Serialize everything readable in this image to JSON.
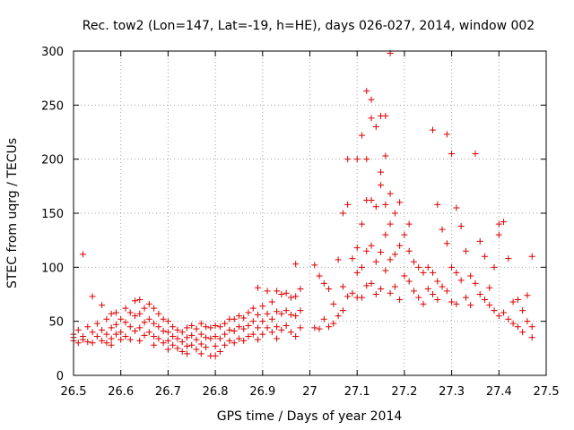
{
  "chart_data": {
    "type": "scatter",
    "title": "Rec. tow2 (Lon=147, Lat=-19, h=HE), days 026-027, 2014, window 002",
    "xlabel": "GPS time / Days of year 2014",
    "ylabel": "STEC from uqrg / TECUs",
    "xlim": [
      26.5,
      27.5
    ],
    "ylim": [
      0,
      300
    ],
    "x_ticks": [
      26.5,
      26.6,
      26.7,
      26.8,
      26.9,
      27,
      27.1,
      27.2,
      27.3,
      27.4,
      27.5
    ],
    "x_tick_labels": [
      "26.5",
      "26.6",
      "26.7",
      "26.8",
      "26.9",
      "27",
      "27.1",
      "27.2",
      "27.3",
      "27.4",
      "27.5"
    ],
    "y_ticks": [
      0,
      50,
      100,
      150,
      200,
      250,
      300
    ],
    "y_tick_labels": [
      "0",
      "50",
      "100",
      "150",
      "200",
      "250",
      "300"
    ],
    "grid": true,
    "marker": "+",
    "color": "#dd0000",
    "series": [
      {
        "name": "STEC",
        "points": [
          [
            26.5,
            38
          ],
          [
            26.5,
            35
          ],
          [
            26.5,
            32
          ],
          [
            26.51,
            42
          ],
          [
            26.51,
            30
          ],
          [
            26.52,
            112
          ],
          [
            26.52,
            36
          ],
          [
            26.52,
            33
          ],
          [
            26.53,
            45
          ],
          [
            26.53,
            31
          ],
          [
            26.54,
            73
          ],
          [
            26.54,
            40
          ],
          [
            26.54,
            30
          ],
          [
            26.55,
            48
          ],
          [
            26.55,
            36
          ],
          [
            26.56,
            65
          ],
          [
            26.56,
            42
          ],
          [
            26.56,
            32
          ],
          [
            26.57,
            52
          ],
          [
            26.57,
            38
          ],
          [
            26.57,
            30
          ],
          [
            26.58,
            57
          ],
          [
            26.58,
            44
          ],
          [
            26.58,
            34
          ],
          [
            26.58,
            28
          ],
          [
            26.59,
            58
          ],
          [
            26.59,
            47
          ],
          [
            26.59,
            38
          ],
          [
            26.6,
            52
          ],
          [
            26.6,
            40
          ],
          [
            26.6,
            33
          ],
          [
            26.61,
            62
          ],
          [
            26.61,
            49
          ],
          [
            26.61,
            36
          ],
          [
            26.62,
            58
          ],
          [
            26.62,
            45
          ],
          [
            26.62,
            33
          ],
          [
            26.63,
            69
          ],
          [
            26.63,
            55
          ],
          [
            26.63,
            41
          ],
          [
            26.64,
            70
          ],
          [
            26.64,
            57
          ],
          [
            26.64,
            44
          ],
          [
            26.64,
            32
          ],
          [
            26.65,
            62
          ],
          [
            26.65,
            49
          ],
          [
            26.65,
            37
          ],
          [
            26.66,
            66
          ],
          [
            26.66,
            52
          ],
          [
            26.66,
            40
          ],
          [
            26.67,
            62
          ],
          [
            26.67,
            48
          ],
          [
            26.67,
            36
          ],
          [
            26.67,
            28
          ],
          [
            26.68,
            57
          ],
          [
            26.68,
            45
          ],
          [
            26.68,
            34
          ],
          [
            26.69,
            52
          ],
          [
            26.69,
            41
          ],
          [
            26.69,
            30
          ],
          [
            26.7,
            50
          ],
          [
            26.7,
            40
          ],
          [
            26.7,
            32
          ],
          [
            26.7,
            24
          ],
          [
            26.71,
            45
          ],
          [
            26.71,
            36
          ],
          [
            26.71,
            28
          ],
          [
            26.72,
            42
          ],
          [
            26.72,
            34
          ],
          [
            26.72,
            25
          ],
          [
            26.73,
            40
          ],
          [
            26.73,
            31
          ],
          [
            26.73,
            22
          ],
          [
            26.74,
            44
          ],
          [
            26.74,
            35
          ],
          [
            26.74,
            27
          ],
          [
            26.74,
            20
          ],
          [
            26.75,
            46
          ],
          [
            26.75,
            37
          ],
          [
            26.75,
            28
          ],
          [
            26.76,
            43
          ],
          [
            26.76,
            33
          ],
          [
            26.76,
            24
          ],
          [
            26.77,
            48
          ],
          [
            26.77,
            38
          ],
          [
            26.77,
            29
          ],
          [
            26.77,
            20
          ],
          [
            26.78,
            45
          ],
          [
            26.78,
            35
          ],
          [
            26.78,
            26
          ],
          [
            26.79,
            44
          ],
          [
            26.79,
            34
          ],
          [
            26.79,
            18
          ],
          [
            26.8,
            46
          ],
          [
            26.8,
            36
          ],
          [
            26.8,
            27
          ],
          [
            26.8,
            18
          ],
          [
            26.81,
            45
          ],
          [
            26.81,
            34
          ],
          [
            26.81,
            22
          ],
          [
            26.82,
            48
          ],
          [
            26.82,
            38
          ],
          [
            26.82,
            28
          ],
          [
            26.83,
            52
          ],
          [
            26.83,
            42
          ],
          [
            26.83,
            32
          ],
          [
            26.84,
            52
          ],
          [
            26.84,
            41
          ],
          [
            26.84,
            30
          ],
          [
            26.85,
            55
          ],
          [
            26.85,
            45
          ],
          [
            26.85,
            34
          ],
          [
            26.86,
            53
          ],
          [
            26.86,
            43
          ],
          [
            26.86,
            32
          ],
          [
            26.87,
            58
          ],
          [
            26.87,
            46
          ],
          [
            26.87,
            36
          ],
          [
            26.88,
            62
          ],
          [
            26.88,
            50
          ],
          [
            26.88,
            38
          ],
          [
            26.89,
            81
          ],
          [
            26.89,
            56
          ],
          [
            26.89,
            44
          ],
          [
            26.89,
            33
          ],
          [
            26.9,
            64
          ],
          [
            26.9,
            50
          ],
          [
            26.9,
            38
          ],
          [
            26.91,
            78
          ],
          [
            26.91,
            57
          ],
          [
            26.91,
            44
          ],
          [
            26.92,
            68
          ],
          [
            26.92,
            52
          ],
          [
            26.92,
            40
          ],
          [
            26.93,
            78
          ],
          [
            26.93,
            59
          ],
          [
            26.93,
            45
          ],
          [
            26.93,
            34
          ],
          [
            26.94,
            75
          ],
          [
            26.94,
            57
          ],
          [
            26.94,
            42
          ],
          [
            26.95,
            76
          ],
          [
            26.95,
            60
          ],
          [
            26.95,
            46
          ],
          [
            26.96,
            72
          ],
          [
            26.96,
            56
          ],
          [
            26.96,
            40
          ],
          [
            26.97,
            103
          ],
          [
            26.97,
            73
          ],
          [
            26.97,
            55
          ],
          [
            26.97,
            36
          ],
          [
            26.98,
            80
          ],
          [
            26.98,
            60
          ],
          [
            26.98,
            44
          ],
          [
            27.01,
            102
          ],
          [
            27.01,
            44
          ],
          [
            27.02,
            92
          ],
          [
            27.02,
            43
          ],
          [
            27.03,
            85
          ],
          [
            27.03,
            52
          ],
          [
            27.04,
            80
          ],
          [
            27.04,
            45
          ],
          [
            27.05,
            66
          ],
          [
            27.05,
            48
          ],
          [
            27.06,
            107
          ],
          [
            27.06,
            55
          ],
          [
            27.07,
            150
          ],
          [
            27.07,
            82
          ],
          [
            27.07,
            60
          ],
          [
            27.08,
            158
          ],
          [
            27.08,
            200
          ],
          [
            27.08,
            73
          ],
          [
            27.09,
            108
          ],
          [
            27.09,
            76
          ],
          [
            27.1,
            200
          ],
          [
            27.1,
            118
          ],
          [
            27.1,
            95
          ],
          [
            27.1,
            72
          ],
          [
            27.11,
            222
          ],
          [
            27.11,
            140
          ],
          [
            27.11,
            100
          ],
          [
            27.11,
            72
          ],
          [
            27.12,
            263
          ],
          [
            27.12,
            200
          ],
          [
            27.12,
            162
          ],
          [
            27.12,
            115
          ],
          [
            27.12,
            83
          ],
          [
            27.13,
            255
          ],
          [
            27.13,
            238
          ],
          [
            27.13,
            162
          ],
          [
            27.13,
            120
          ],
          [
            27.13,
            85
          ],
          [
            27.14,
            230
          ],
          [
            27.14,
            156
          ],
          [
            27.14,
            105
          ],
          [
            27.14,
            75
          ],
          [
            27.15,
            240
          ],
          [
            27.15,
            188
          ],
          [
            27.15,
            176
          ],
          [
            27.15,
            114
          ],
          [
            27.15,
            80
          ],
          [
            27.16,
            240
          ],
          [
            27.16,
            203
          ],
          [
            27.16,
            158
          ],
          [
            27.16,
            130
          ],
          [
            27.16,
            97
          ],
          [
            27.17,
            298
          ],
          [
            27.17,
            168
          ],
          [
            27.17,
            140
          ],
          [
            27.17,
            107
          ],
          [
            27.17,
            76
          ],
          [
            27.18,
            150
          ],
          [
            27.18,
            112
          ],
          [
            27.18,
            82
          ],
          [
            27.19,
            160
          ],
          [
            27.19,
            120
          ],
          [
            27.19,
            70
          ],
          [
            27.2,
            130
          ],
          [
            27.2,
            92
          ],
          [
            27.21,
            140
          ],
          [
            27.21,
            115
          ],
          [
            27.21,
            87
          ],
          [
            27.22,
            105
          ],
          [
            27.22,
            78
          ],
          [
            27.23,
            100
          ],
          [
            27.23,
            72
          ],
          [
            27.24,
            95
          ],
          [
            27.24,
            66
          ],
          [
            27.25,
            100
          ],
          [
            27.25,
            80
          ],
          [
            27.26,
            227
          ],
          [
            27.26,
            95
          ],
          [
            27.26,
            75
          ],
          [
            27.27,
            158
          ],
          [
            27.27,
            87
          ],
          [
            27.27,
            70
          ],
          [
            27.28,
            135
          ],
          [
            27.28,
            82
          ],
          [
            27.29,
            223
          ],
          [
            27.29,
            122
          ],
          [
            27.29,
            78
          ],
          [
            27.3,
            205
          ],
          [
            27.3,
            100
          ],
          [
            27.3,
            68
          ],
          [
            27.31,
            155
          ],
          [
            27.31,
            95
          ],
          [
            27.31,
            66
          ],
          [
            27.32,
            138
          ],
          [
            27.32,
            88
          ],
          [
            27.33,
            115
          ],
          [
            27.33,
            72
          ],
          [
            27.34,
            92
          ],
          [
            27.34,
            65
          ],
          [
            27.35,
            205
          ],
          [
            27.35,
            85
          ],
          [
            27.36,
            124
          ],
          [
            27.36,
            75
          ],
          [
            27.37,
            110
          ],
          [
            27.37,
            70
          ],
          [
            27.38,
            81
          ],
          [
            27.38,
            65
          ],
          [
            27.39,
            100
          ],
          [
            27.39,
            60
          ],
          [
            27.4,
            140
          ],
          [
            27.4,
            130
          ],
          [
            27.4,
            55
          ],
          [
            27.41,
            142
          ],
          [
            27.41,
            58
          ],
          [
            27.42,
            108
          ],
          [
            27.42,
            52
          ],
          [
            27.43,
            68
          ],
          [
            27.43,
            48
          ],
          [
            27.44,
            70
          ],
          [
            27.44,
            45
          ],
          [
            27.45,
            60
          ],
          [
            27.45,
            40
          ],
          [
            27.46,
            74
          ],
          [
            27.46,
            50
          ],
          [
            27.47,
            110
          ],
          [
            27.47,
            45
          ],
          [
            27.47,
            35
          ]
        ]
      }
    ]
  }
}
